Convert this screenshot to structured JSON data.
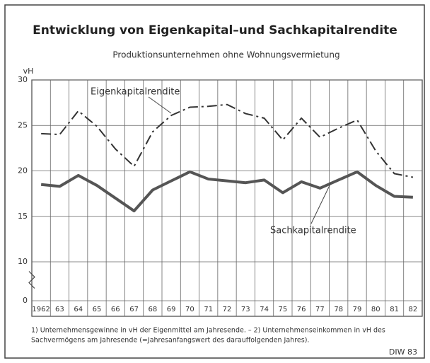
{
  "chart_data": {
    "type": "line",
    "title": "Entwicklung von Eigenkapital–und Sachkapitalrendite",
    "subtitle": "Produktionsunternehmen ohne Wohnungsvermietung",
    "y_axis_label": "vH",
    "categories": [
      "1962",
      "63",
      "64",
      "65",
      "66",
      "67",
      "68",
      "69",
      "70",
      "71",
      "72",
      "73",
      "74",
      "75",
      "76",
      "77",
      "78",
      "79",
      "80",
      "81",
      "82"
    ],
    "series": [
      {
        "name": "Eigenkapitalrendite",
        "color": "#333333",
        "style": "dash-dot",
        "values": [
          24.1,
          24.0,
          26.6,
          24.9,
          22.4,
          20.5,
          24.3,
          26.1,
          27.0,
          27.1,
          27.3,
          26.3,
          25.8,
          23.4,
          25.8,
          23.7,
          24.7,
          25.6,
          22.2,
          19.7,
          19.3
        ]
      },
      {
        "name": "Sachkapitalrendite",
        "color": "#555555",
        "style": "solid",
        "values": [
          18.5,
          18.3,
          19.5,
          18.4,
          17.0,
          15.6,
          17.9,
          18.9,
          19.9,
          19.1,
          18.9,
          18.7,
          19.0,
          17.6,
          18.8,
          18.1,
          19.0,
          19.9,
          18.4,
          17.2,
          17.1
        ]
      }
    ],
    "ylim": [
      0,
      30
    ],
    "yticks": [
      0,
      10,
      15,
      20,
      25,
      30
    ],
    "y_axis_break": true,
    "grid": true,
    "footnotes": [
      "1) Unternehmensgewinne in vH der Eigenmittel am Jahresende. – 2) Unternehmenseinkommen in vH des",
      "Sachvermögens am Jahresende (=Jahresanfangswert des darauffolgenden Jahres)."
    ],
    "source": "DIW 83"
  }
}
